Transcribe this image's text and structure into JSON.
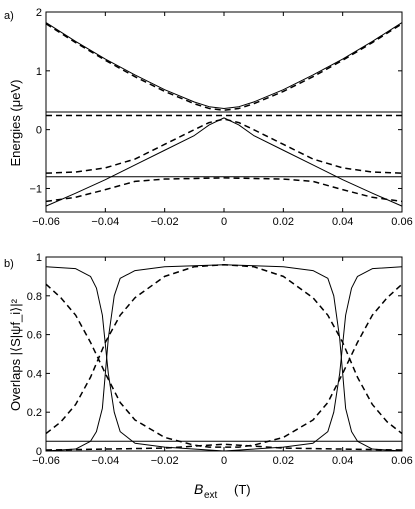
{
  "chart_data": [
    {
      "panel_label": "a)",
      "type": "line",
      "xlabel": "",
      "ylabel": "Energies (μeV)",
      "xlim": [
        -0.06,
        0.06
      ],
      "ylim": [
        -1.4,
        2.0
      ],
      "x_ticks": [
        "−0.06",
        "−0.04",
        "−0.02",
        "0",
        "0.02",
        "0.04",
        "0.06"
      ],
      "y_ticks": [
        "−1",
        "0",
        "1",
        "2"
      ],
      "grid": false,
      "series": [
        {
          "style": "solid",
          "x": [
            -0.06,
            -0.05,
            -0.04,
            -0.03,
            -0.02,
            -0.01,
            -0.005,
            0,
            0.005,
            0.01,
            0.02,
            0.03,
            0.04,
            0.05,
            0.06
          ],
          "y": [
            1.82,
            1.5,
            1.2,
            0.93,
            0.68,
            0.47,
            0.39,
            0.36,
            0.39,
            0.47,
            0.68,
            0.93,
            1.2,
            1.5,
            1.82
          ]
        },
        {
          "style": "dashed",
          "x": [
            -0.06,
            -0.05,
            -0.04,
            -0.03,
            -0.02,
            -0.01,
            -0.005,
            0,
            0.005,
            0.01,
            0.02,
            0.03,
            0.04,
            0.05,
            0.06
          ],
          "y": [
            1.8,
            1.48,
            1.18,
            0.9,
            0.65,
            0.44,
            0.36,
            0.33,
            0.36,
            0.44,
            0.65,
            0.9,
            1.18,
            1.48,
            1.8
          ]
        },
        {
          "style": "solid",
          "x": [
            -0.06,
            0.06
          ],
          "y": [
            0.3,
            0.3
          ]
        },
        {
          "style": "dashed",
          "x": [
            -0.06,
            0.06
          ],
          "y": [
            0.24,
            0.24
          ]
        },
        {
          "style": "solid",
          "x": [
            -0.06,
            -0.05,
            -0.04,
            -0.03,
            -0.02,
            -0.01,
            -0.005,
            0,
            0.005,
            0.01,
            0.02,
            0.03,
            0.04,
            0.05,
            0.06
          ],
          "y": [
            -1.3,
            -1.08,
            -0.85,
            -0.6,
            -0.35,
            -0.1,
            0.08,
            0.2,
            0.08,
            -0.1,
            -0.35,
            -0.6,
            -0.85,
            -1.08,
            -1.3
          ]
        },
        {
          "style": "dashed",
          "x": [
            -0.06,
            -0.05,
            -0.04,
            -0.03,
            -0.02,
            -0.01,
            -0.005,
            0,
            0.005,
            0.01,
            0.02,
            0.03,
            0.04,
            0.05,
            0.06
          ],
          "y": [
            -0.74,
            -0.72,
            -0.65,
            -0.5,
            -0.25,
            0.0,
            0.12,
            0.18,
            0.12,
            0.0,
            -0.25,
            -0.5,
            -0.65,
            -0.72,
            -0.74
          ]
        },
        {
          "style": "solid",
          "x": [
            -0.06,
            0.06
          ],
          "y": [
            -0.8,
            -0.8
          ]
        },
        {
          "style": "dashed",
          "x": [
            -0.06,
            -0.05,
            -0.04,
            -0.03,
            -0.02,
            -0.01,
            0,
            0.01,
            0.02,
            0.03,
            0.04,
            0.05,
            0.06
          ],
          "y": [
            -1.22,
            -1.15,
            -1.02,
            -0.88,
            -0.84,
            -0.83,
            -0.82,
            -0.83,
            -0.84,
            -0.88,
            -1.02,
            -1.15,
            -1.22
          ]
        }
      ]
    },
    {
      "panel_label": "b)",
      "type": "line",
      "xlabel": "B_ext (T)",
      "xlabel_main": "B",
      "xlabel_sub": "ext",
      "xlabel_unit": "(T)",
      "ylabel": "Overlaps |⟨S|ψf_i⟩|²",
      "xlim": [
        -0.06,
        0.06
      ],
      "ylim": [
        0,
        1.0
      ],
      "x_ticks": [
        "−0.06",
        "−0.04",
        "−0.02",
        "0",
        "0.02",
        "0.04",
        "0.06"
      ],
      "y_ticks": [
        "0",
        "0.2",
        "0.4",
        "0.6",
        "0.8",
        "1"
      ],
      "grid": false,
      "series": [
        {
          "style": "solid",
          "x": [
            -0.06,
            -0.05,
            -0.045,
            -0.043,
            -0.041,
            -0.04,
            -0.039,
            -0.037,
            -0.035,
            -0.03,
            -0.02,
            0,
            0.02,
            0.03,
            0.035,
            0.037,
            0.039,
            0.04,
            0.041,
            0.043,
            0.045,
            0.05,
            0.06
          ],
          "y": [
            0.95,
            0.94,
            0.9,
            0.84,
            0.7,
            0.55,
            0.4,
            0.2,
            0.1,
            0.04,
            0.02,
            0.0,
            0.02,
            0.04,
            0.1,
            0.2,
            0.4,
            0.55,
            0.7,
            0.84,
            0.9,
            0.94,
            0.95
          ]
        },
        {
          "style": "solid",
          "x": [
            -0.06,
            -0.05,
            -0.045,
            -0.043,
            -0.041,
            -0.04,
            -0.039,
            -0.037,
            -0.035,
            -0.03,
            -0.02,
            0,
            0.02,
            0.03,
            0.035,
            0.037,
            0.039,
            0.04,
            0.041,
            0.043,
            0.045,
            0.05,
            0.06
          ],
          "y": [
            0.0,
            0.01,
            0.05,
            0.1,
            0.22,
            0.4,
            0.58,
            0.8,
            0.89,
            0.93,
            0.95,
            0.96,
            0.95,
            0.93,
            0.89,
            0.8,
            0.58,
            0.4,
            0.22,
            0.1,
            0.05,
            0.01,
            0.0
          ]
        },
        {
          "style": "dashed",
          "x": [
            -0.06,
            -0.055,
            -0.05,
            -0.045,
            -0.04,
            -0.035,
            -0.03,
            -0.02,
            -0.01,
            0,
            0.01,
            0.02,
            0.03,
            0.035,
            0.04,
            0.045,
            0.05,
            0.055,
            0.06
          ],
          "y": [
            0.09,
            0.15,
            0.24,
            0.38,
            0.56,
            0.7,
            0.79,
            0.9,
            0.95,
            0.96,
            0.95,
            0.9,
            0.79,
            0.7,
            0.56,
            0.38,
            0.24,
            0.15,
            0.09
          ]
        },
        {
          "style": "dashed",
          "x": [
            -0.06,
            -0.055,
            -0.05,
            -0.045,
            -0.04,
            -0.035,
            -0.03,
            -0.02,
            -0.01,
            -0.005,
            0,
            0.005,
            0.01,
            0.02,
            0.03,
            0.035,
            0.04,
            0.045,
            0.05,
            0.055,
            0.06
          ],
          "y": [
            0.86,
            0.79,
            0.7,
            0.56,
            0.4,
            0.25,
            0.16,
            0.07,
            0.03,
            0.02,
            0.02,
            0.02,
            0.03,
            0.07,
            0.16,
            0.25,
            0.4,
            0.56,
            0.7,
            0.79,
            0.86
          ]
        },
        {
          "style": "solid",
          "x": [
            -0.06,
            0.06
          ],
          "y": [
            0.05,
            0.05
          ]
        },
        {
          "style": "dashed",
          "x": [
            -0.06,
            -0.04,
            -0.02,
            -0.01,
            0,
            0.01,
            0.02,
            0.04,
            0.06
          ],
          "y": [
            0.005,
            0.01,
            0.015,
            0.025,
            0.035,
            0.025,
            0.015,
            0.01,
            0.005
          ]
        }
      ]
    }
  ]
}
